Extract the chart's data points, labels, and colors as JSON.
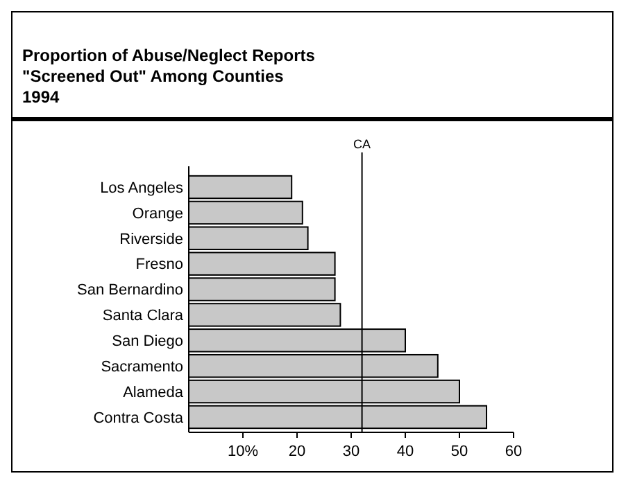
{
  "chart_data": {
    "type": "bar",
    "orientation": "horizontal",
    "title": "Proportion of Abuse/Neglect Reports\n\"Screened Out\" Among Counties\n1994",
    "categories": [
      "Los Angeles",
      "Orange",
      "Riverside",
      "Fresno",
      "San Bernardino",
      "Santa Clara",
      "San Diego",
      "Sacramento",
      "Alameda",
      "Contra Costa"
    ],
    "values": [
      19,
      21,
      22,
      27,
      27,
      28,
      40,
      46,
      50,
      55
    ],
    "color": "#c8c8c8",
    "xlim": [
      0,
      60
    ],
    "xticks": [
      {
        "value": 10,
        "label": "10%"
      },
      20,
      30,
      40,
      50,
      60
    ],
    "ref_lines": [
      {
        "axis": "x",
        "value": 32,
        "label": "CA",
        "color": "#000000"
      }
    ],
    "grid": false
  }
}
